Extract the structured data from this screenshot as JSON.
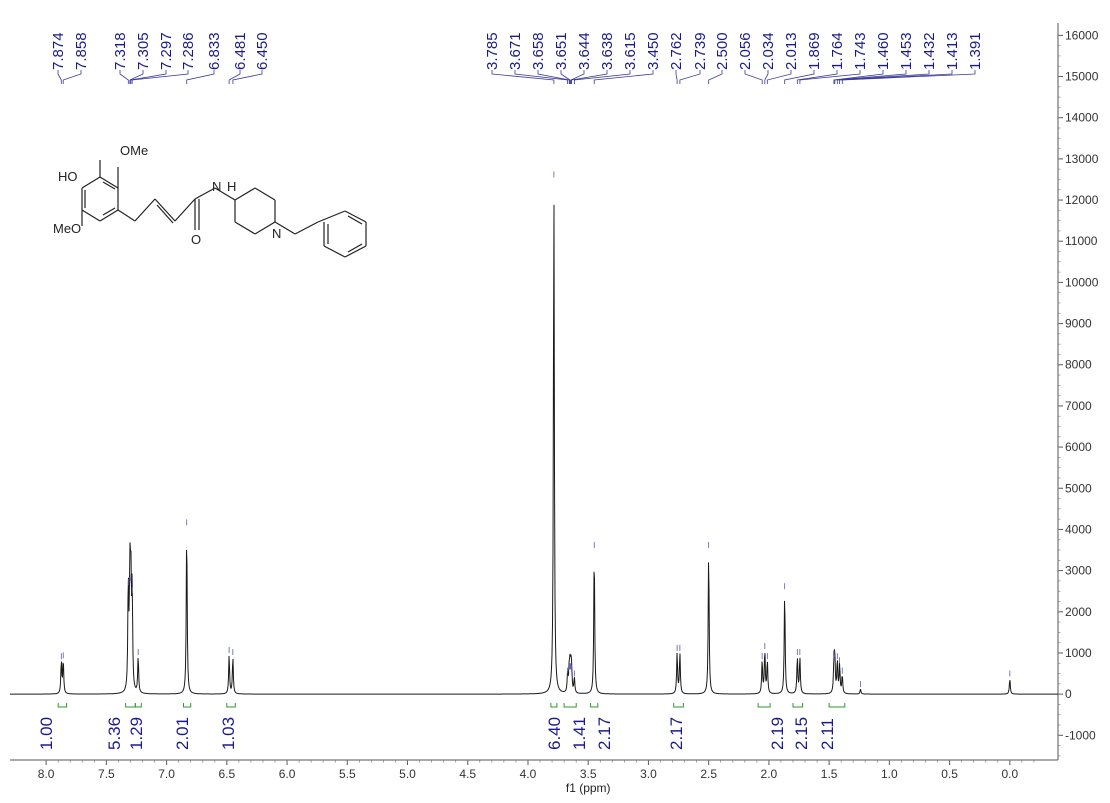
{
  "chart_data": {
    "type": "line",
    "title": "",
    "xlabel": "f1 (ppm)",
    "ylabel": "",
    "xlim": [
      8.3,
      -0.4
    ],
    "ylim": [
      -1600,
      16300
    ],
    "x_ticks": [
      "8.0",
      "7.5",
      "7.0",
      "6.5",
      "6.0",
      "5.5",
      "5.0",
      "4.5",
      "4.0",
      "3.5",
      "3.0",
      "2.5",
      "2.0",
      "1.5",
      "1.0",
      "0.5",
      "0.0"
    ],
    "y_ticks": [
      "16000",
      "15000",
      "14000",
      "13000",
      "12000",
      "11000",
      "10000",
      "9000",
      "8000",
      "7000",
      "6000",
      "5000",
      "4000",
      "3000",
      "2000",
      "1000",
      "0",
      "-1000"
    ],
    "peaks": [
      {
        "x": 7.874,
        "y": 800
      },
      {
        "x": 7.858,
        "y": 820
      },
      {
        "x": 7.318,
        "y": 2600
      },
      {
        "x": 7.305,
        "y": 2650
      },
      {
        "x": 7.297,
        "y": 2700
      },
      {
        "x": 7.286,
        "y": 2400
      },
      {
        "x": 7.236,
        "y": 900
      },
      {
        "x": 6.833,
        "y": 4050
      },
      {
        "x": 6.481,
        "y": 950
      },
      {
        "x": 6.45,
        "y": 900
      },
      {
        "x": 3.785,
        "y": 12500
      },
      {
        "x": 3.671,
        "y": 450
      },
      {
        "x": 3.658,
        "y": 550
      },
      {
        "x": 3.651,
        "y": 560
      },
      {
        "x": 3.644,
        "y": 550
      },
      {
        "x": 3.638,
        "y": 500
      },
      {
        "x": 3.615,
        "y": 380
      },
      {
        "x": 3.45,
        "y": 3500
      },
      {
        "x": 2.762,
        "y": 1000
      },
      {
        "x": 2.739,
        "y": 1000
      },
      {
        "x": 2.5,
        "y": 3500
      },
      {
        "x": 2.056,
        "y": 800
      },
      {
        "x": 2.034,
        "y": 1050
      },
      {
        "x": 2.013,
        "y": 800
      },
      {
        "x": 1.869,
        "y": 2500
      },
      {
        "x": 1.764,
        "y": 900
      },
      {
        "x": 1.743,
        "y": 900
      },
      {
        "x": 1.46,
        "y": 750
      },
      {
        "x": 1.453,
        "y": 850
      },
      {
        "x": 1.432,
        "y": 800
      },
      {
        "x": 1.413,
        "y": 700
      },
      {
        "x": 1.391,
        "y": 450
      },
      {
        "x": 1.24,
        "y": 120
      },
      {
        "x": 0.0,
        "y": 380
      }
    ],
    "peak_labels": [
      "7.874",
      "7.858",
      "7.318",
      "7.305",
      "7.297",
      "7.286",
      "6.833",
      "6.481",
      "6.450",
      "3.785",
      "3.671",
      "3.658",
      "3.651",
      "3.644",
      "3.638",
      "3.615",
      "3.450",
      "2.762",
      "2.739",
      "2.500",
      "2.056",
      "2.034",
      "2.013",
      "1.869",
      "1.764",
      "1.743",
      "1.460",
      "1.453",
      "1.432",
      "1.413",
      "1.391"
    ],
    "integrations": [
      {
        "label": "1.00",
        "from": 7.9,
        "to": 7.83
      },
      {
        "label": "5.36",
        "from": 7.34,
        "to": 7.26
      },
      {
        "label": "1.29",
        "from": 7.26,
        "to": 7.21
      },
      {
        "label": "2.01",
        "from": 6.86,
        "to": 6.8
      },
      {
        "label": "1.03",
        "from": 6.5,
        "to": 6.43
      },
      {
        "label": "6.40",
        "from": 3.81,
        "to": 3.76
      },
      {
        "label": "1.41",
        "from": 3.7,
        "to": 3.6
      },
      {
        "label": "2.17",
        "from": 3.48,
        "to": 3.42
      },
      {
        "label": "2.17",
        "from": 2.79,
        "to": 2.71
      },
      {
        "label": "2.19",
        "from": 2.09,
        "to": 1.99
      },
      {
        "label": "2.15",
        "from": 1.8,
        "to": 1.72
      },
      {
        "label": "2.11",
        "from": 1.5,
        "to": 1.37
      }
    ],
    "molecule_labels": {
      "ome_top": "OMe",
      "ho": "HO",
      "meo": "MeO",
      "nh": "N",
      "h": "H",
      "o": "O",
      "n_ring": "N"
    }
  }
}
